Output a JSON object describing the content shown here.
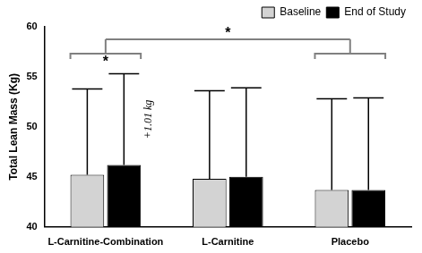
{
  "chart_data": {
    "type": "bar",
    "y_label": "Total Lean Mass (Kg)",
    "categories": [
      "L-Carnitine-Combination",
      "L-Carnitine",
      "Placebo"
    ],
    "series": [
      {
        "name": "Baseline",
        "color": "#d3d3d3",
        "values": [
          45.2,
          44.8,
          43.7
        ],
        "errors": [
          8.6,
          8.8,
          9.1
        ]
      },
      {
        "name": "End of Study",
        "color": "#000000",
        "values": [
          46.2,
          45.0,
          43.7
        ],
        "errors": [
          9.1,
          8.9,
          9.2
        ]
      }
    ],
    "ylim": [
      40,
      60
    ],
    "yticks": [
      40,
      45,
      50,
      55,
      60
    ],
    "grid": false,
    "legend": "top right",
    "brackets": [
      {
        "label": "*",
        "groups": [
          "L-Carnitine-Combination"
        ]
      },
      {
        "label": "*",
        "groups": [
          "L-Carnitine-Combination",
          "Placebo"
        ]
      }
    ],
    "annotations": [
      {
        "text": "+1.01 kg",
        "category": "L-Carnitine-Combination",
        "series": "End of Study"
      }
    ]
  }
}
